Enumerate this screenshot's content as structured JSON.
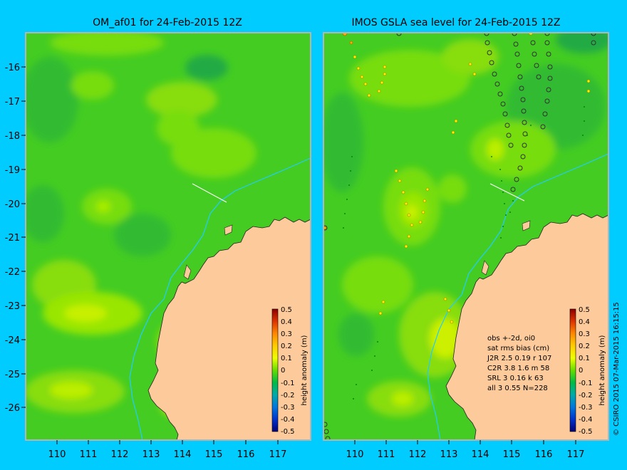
{
  "left_panel": {
    "title": "OM_af01 for 24-Feb-2015 12Z"
  },
  "right_panel": {
    "title": "IMOS GSLA sea level  for 24-Feb-2015 12Z"
  },
  "y_ticks": [
    "-16",
    "-17",
    "-18",
    "-19",
    "-20",
    "-21",
    "-22",
    "-23",
    "-24",
    "-25",
    "-26"
  ],
  "x_ticks": [
    "110",
    "111",
    "112",
    "113",
    "114",
    "115",
    "116",
    "117"
  ],
  "colorbar": {
    "label": "height anomaly (m)",
    "ticks": [
      "0.5",
      "0.4",
      "0.3",
      "0.2",
      "0.1",
      "0",
      "-0.1",
      "-0.2",
      "-0.3",
      "-0.4",
      "-0.5"
    ],
    "colors": [
      "#8a0000",
      "#cc2200",
      "#ff5500",
      "#ff9900",
      "#ffcc00",
      "#ffff00",
      "#ccff00",
      "#88ee00",
      "#33cc00",
      "#00bb22",
      "#00aa88",
      "#0088cc",
      "#0055ee",
      "#0022cc",
      "#000088"
    ]
  },
  "stats": {
    "lines": [
      "obs +-2d, oi0",
      "sat rms bias (cm)",
      "J2R   2.5  0.19  r 107",
      "C2R   3.8  1.6  m 58",
      "SRL    3  0.16  k 63",
      "all    3  0.55  N=228"
    ]
  },
  "credit": "© CSIRO 2015   07-Mar-2015 16:15:15",
  "colors": {
    "background": "#00ccff",
    "ocean": "#44cc22",
    "land": "#fdca9b",
    "coast_shelf": "#bfa78a",
    "isobath": "#22ccff"
  }
}
